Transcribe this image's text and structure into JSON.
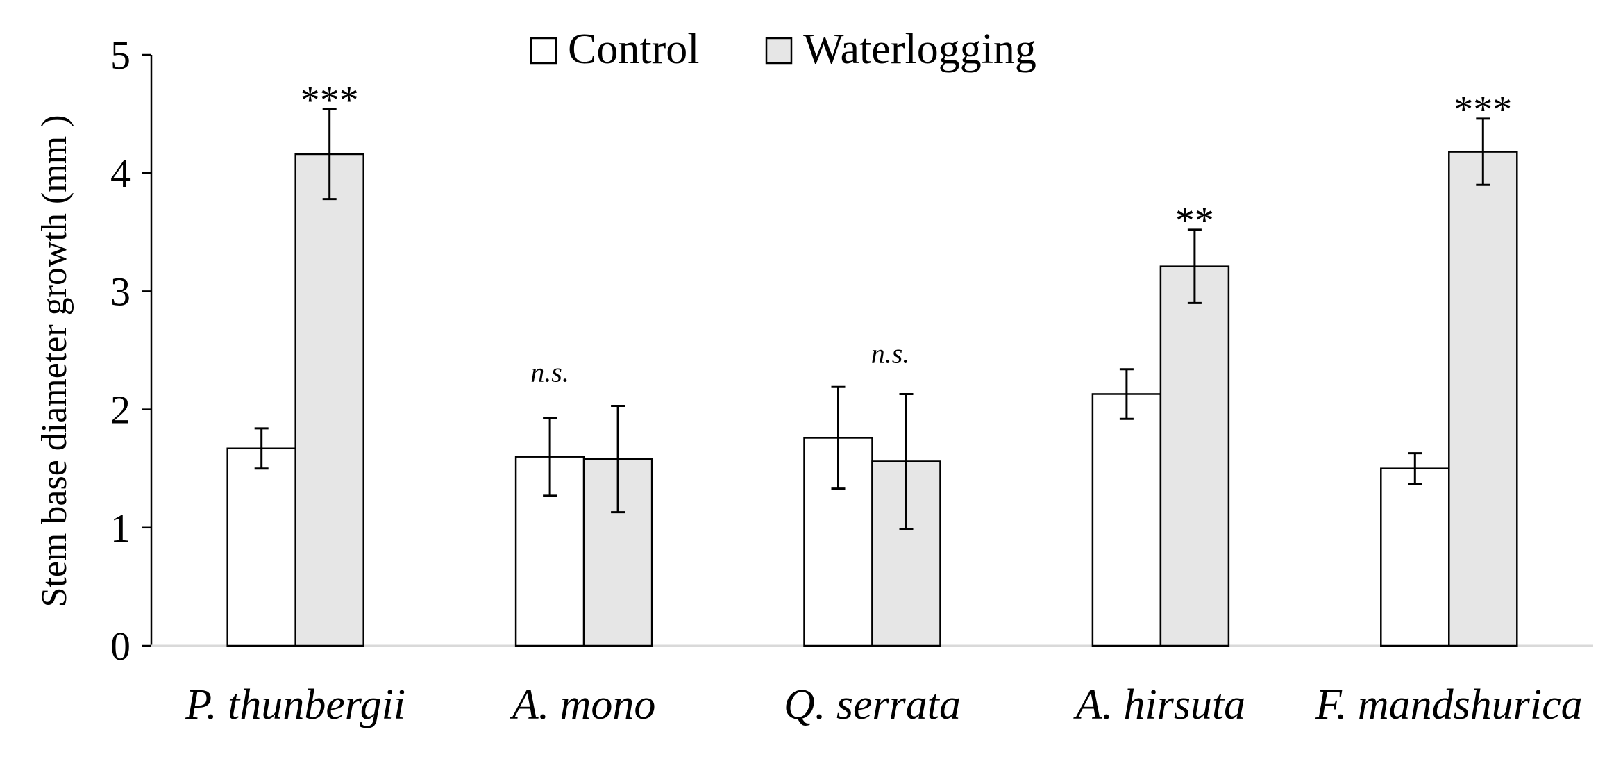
{
  "chart_data": {
    "type": "bar",
    "title": "",
    "xlabel": "",
    "ylabel": "Stem base diameter growth (mm )",
    "ylim": [
      0,
      5
    ],
    "yticks": [
      0,
      1,
      2,
      3,
      4,
      5
    ],
    "grid": false,
    "legend_position": "top-center",
    "categories": [
      "P. thunbergii",
      "A. mono",
      "Q. serrata",
      "A. hirsuta",
      "F. mandshurica"
    ],
    "series": [
      {
        "name": "Control",
        "color": "#ffffff",
        "values": [
          1.67,
          1.6,
          1.76,
          2.13,
          1.5
        ],
        "errors": [
          0.17,
          0.33,
          0.43,
          0.21,
          0.13
        ]
      },
      {
        "name": "Waterlogging",
        "color": "#e6e6e6",
        "values": [
          4.16,
          1.58,
          1.56,
          3.21,
          4.18
        ],
        "errors": [
          0.38,
          0.45,
          0.57,
          0.31,
          0.28
        ]
      }
    ],
    "annotations": [
      "***",
      "n.s.",
      "n.s.",
      "**",
      "***"
    ]
  },
  "colors": {
    "axis": "#000000",
    "bar_edge": "#000000",
    "baseline": "#d9d9d9"
  }
}
